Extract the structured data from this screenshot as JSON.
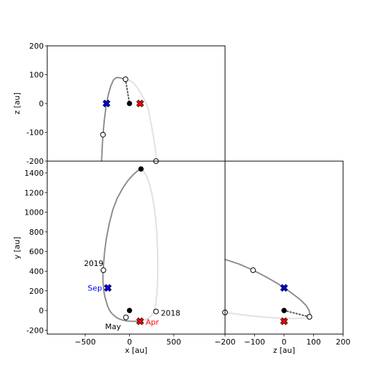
{
  "chart_data": [
    {
      "type": "line",
      "panel": "x-z",
      "xlabel": "",
      "ylabel": "z [au]",
      "xlim": [
        -930,
        1080
      ],
      "ylim": [
        -200,
        200
      ],
      "yticks": [
        -200,
        -100,
        0,
        100,
        200
      ],
      "grid": false,
      "series": [
        {
          "style": "solid-dark",
          "color": "#8c8c8c",
          "x": [
            -315,
            -310,
            -300,
            -285,
            -265,
            -240,
            -210,
            -180,
            -150,
            -120,
            -95,
            -75,
            -60,
            -45
          ],
          "z": [
            -200,
            -160,
            -110,
            -60,
            -10,
            30,
            62,
            82,
            90,
            90,
            88,
            86,
            85,
            84
          ]
        },
        {
          "style": "solid-light",
          "color": "#e1e1e1",
          "x": [
            -45,
            -20,
            10,
            40,
            70,
            100,
            130,
            160,
            190,
            220,
            250,
            280,
            300,
            310
          ],
          "z": [
            84,
            82,
            78,
            72,
            62,
            50,
            35,
            18,
            0,
            -30,
            -80,
            -130,
            -180,
            -200
          ]
        },
        {
          "style": "dotted",
          "color": "#555555",
          "x": [
            -45,
            0
          ],
          "z": [
            84,
            0
          ]
        }
      ],
      "points": [
        {
          "label": "",
          "kind": "sun",
          "x": 0,
          "z": 0
        },
        {
          "label": "",
          "kind": "open",
          "x": -45,
          "z": 84
        },
        {
          "label": "",
          "kind": "open",
          "x": -300,
          "z": -108
        },
        {
          "label": "",
          "kind": "open",
          "x": 300,
          "z": -200
        },
        {
          "label": "",
          "kind": "cross-blue",
          "x": -260,
          "z": 0
        },
        {
          "label": "",
          "kind": "cross-red",
          "x": 120,
          "z": 0
        }
      ]
    },
    {
      "type": "line",
      "panel": "x-y",
      "xlabel": "x [au]",
      "ylabel": "y [au]",
      "xlim": [
        -930,
        1080
      ],
      "ylim": [
        -240,
        1520
      ],
      "xticks": [
        -500,
        0,
        500
      ],
      "yticks": [
        -200,
        0,
        200,
        400,
        600,
        800,
        1000,
        1200,
        1400
      ],
      "grid": false,
      "series": [
        {
          "style": "solid-dark",
          "color": "#8c8c8c",
          "x": [
            130,
            90,
            40,
            -20,
            -80,
            -140,
            -190,
            -230,
            -260,
            -280,
            -292,
            -298,
            -300,
            -298,
            -290,
            -278,
            -263,
            -245,
            -225,
            -200,
            -170,
            -140,
            -110,
            -80,
            -50,
            -20,
            10,
            40,
            70,
            100,
            120
          ],
          "y": [
            1440,
            1420,
            1380,
            1320,
            1240,
            1140,
            1020,
            880,
            740,
            610,
            490,
            410,
            340,
            270,
            200,
            140,
            90,
            40,
            0,
            -30,
            -55,
            -75,
            -88,
            -97,
            -103,
            -107,
            -109,
            -110,
            -110,
            -109,
            -108
          ]
        },
        {
          "style": "solid-light",
          "color": "#e1e1e1",
          "x": [
            120,
            160,
            200,
            240,
            270,
            290,
            305,
            315,
            320,
            318,
            310,
            295,
            275,
            250,
            220,
            185,
            150
          ],
          "y": [
            -108,
            -100,
            -85,
            -60,
            -25,
            30,
            120,
            250,
            420,
            600,
            780,
            940,
            1080,
            1200,
            1300,
            1380,
            1430
          ]
        }
      ],
      "points": [
        {
          "label": "",
          "kind": "sun",
          "x": 130,
          "y": 1440
        },
        {
          "label": "",
          "kind": "sun",
          "x": 0,
          "y": 0
        },
        {
          "label": "2019",
          "kind": "open",
          "x": -295,
          "y": 410
        },
        {
          "label": "Sep",
          "kind": "cross-blue",
          "x": -245,
          "y": 230
        },
        {
          "label": "May",
          "kind": "open",
          "x": -40,
          "y": -70
        },
        {
          "label": "Apr",
          "kind": "cross-red",
          "x": 120,
          "y": -110
        },
        {
          "label": "2018",
          "kind": "open",
          "x": 300,
          "y": -10
        }
      ]
    },
    {
      "type": "line",
      "panel": "z-y",
      "xlabel": "z [au]",
      "ylabel": "",
      "xlim": [
        -200,
        200
      ],
      "ylim": [
        -240,
        1520
      ],
      "xticks": [
        -200,
        -100,
        0,
        100,
        200
      ],
      "grid": false,
      "series": [
        {
          "style": "solid-dark",
          "color": "#8c8c8c",
          "z": [
            -200,
            -150,
            -105,
            -60,
            -20,
            20,
            55,
            75,
            85,
            88,
            86
          ],
          "y": [
            520,
            470,
            410,
            340,
            270,
            190,
            110,
            50,
            0,
            -40,
            -65
          ]
        },
        {
          "style": "solid-light",
          "color": "#e1e1e1",
          "z": [
            86,
            70,
            40,
            0,
            -60,
            -120,
            -200
          ],
          "y": [
            -65,
            -75,
            -80,
            -80,
            -70,
            -52,
            -20
          ]
        },
        {
          "style": "dotted",
          "color": "#555555",
          "z": [
            0,
            86
          ],
          "y": [
            0,
            -65
          ]
        }
      ],
      "points": [
        {
          "label": "",
          "kind": "sun",
          "z": 0,
          "y": 0
        },
        {
          "label": "",
          "kind": "open",
          "z": -105,
          "y": 410
        },
        {
          "label": "",
          "kind": "cross-blue",
          "z": 0,
          "y": 230
        },
        {
          "label": "",
          "kind": "cross-red",
          "z": 0,
          "y": -110
        },
        {
          "label": "",
          "kind": "open",
          "z": 86,
          "y": -65
        },
        {
          "label": "",
          "kind": "open",
          "z": -200,
          "y": -20
        }
      ]
    }
  ],
  "labels": {
    "xz_ylabel": "z [au]",
    "xy_ylabel": "y [au]",
    "xy_xlabel": "x [au]",
    "zy_xlabel": "z [au]"
  },
  "colors": {
    "dark_orbit": "#8c8c8c",
    "light_orbit": "#e1e1e1",
    "sep_blue": "#0000ff",
    "apr_red": "#ff0000"
  }
}
